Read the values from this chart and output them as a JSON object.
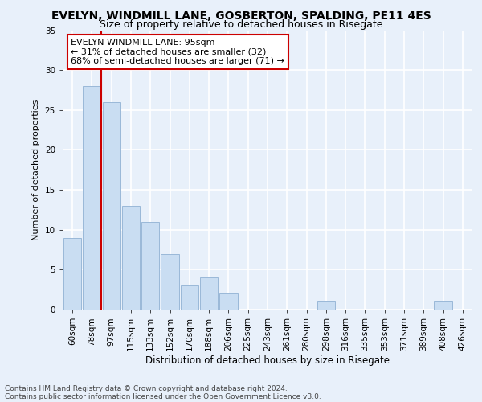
{
  "title1": "EVELYN, WINDMILL LANE, GOSBERTON, SPALDING, PE11 4ES",
  "title2": "Size of property relative to detached houses in Risegate",
  "xlabel": "Distribution of detached houses by size in Risegate",
  "ylabel": "Number of detached properties",
  "categories": [
    "60sqm",
    "78sqm",
    "97sqm",
    "115sqm",
    "133sqm",
    "152sqm",
    "170sqm",
    "188sqm",
    "206sqm",
    "225sqm",
    "243sqm",
    "261sqm",
    "280sqm",
    "298sqm",
    "316sqm",
    "335sqm",
    "353sqm",
    "371sqm",
    "389sqm",
    "408sqm",
    "426sqm"
  ],
  "values": [
    9,
    28,
    26,
    13,
    11,
    7,
    3,
    4,
    2,
    0,
    0,
    0,
    0,
    1,
    0,
    0,
    0,
    0,
    0,
    1,
    0
  ],
  "bar_color": "#c9ddf2",
  "bar_edge_color": "#9ab8d8",
  "vline_color": "#cc0000",
  "annotation_text": "EVELYN WINDMILL LANE: 95sqm\n← 31% of detached houses are smaller (32)\n68% of semi-detached houses are larger (71) →",
  "annotation_box_color": "#ffffff",
  "annotation_box_edge_color": "#cc0000",
  "ylim": [
    0,
    35
  ],
  "yticks": [
    0,
    5,
    10,
    15,
    20,
    25,
    30,
    35
  ],
  "footer1": "Contains HM Land Registry data © Crown copyright and database right 2024.",
  "footer2": "Contains public sector information licensed under the Open Government Licence v3.0.",
  "background_color": "#e8f0fa",
  "grid_color": "#ffffff",
  "title1_fontsize": 10,
  "title2_fontsize": 9,
  "xlabel_fontsize": 8.5,
  "ylabel_fontsize": 8,
  "tick_fontsize": 7.5,
  "annotation_fontsize": 8,
  "footer_fontsize": 6.5
}
